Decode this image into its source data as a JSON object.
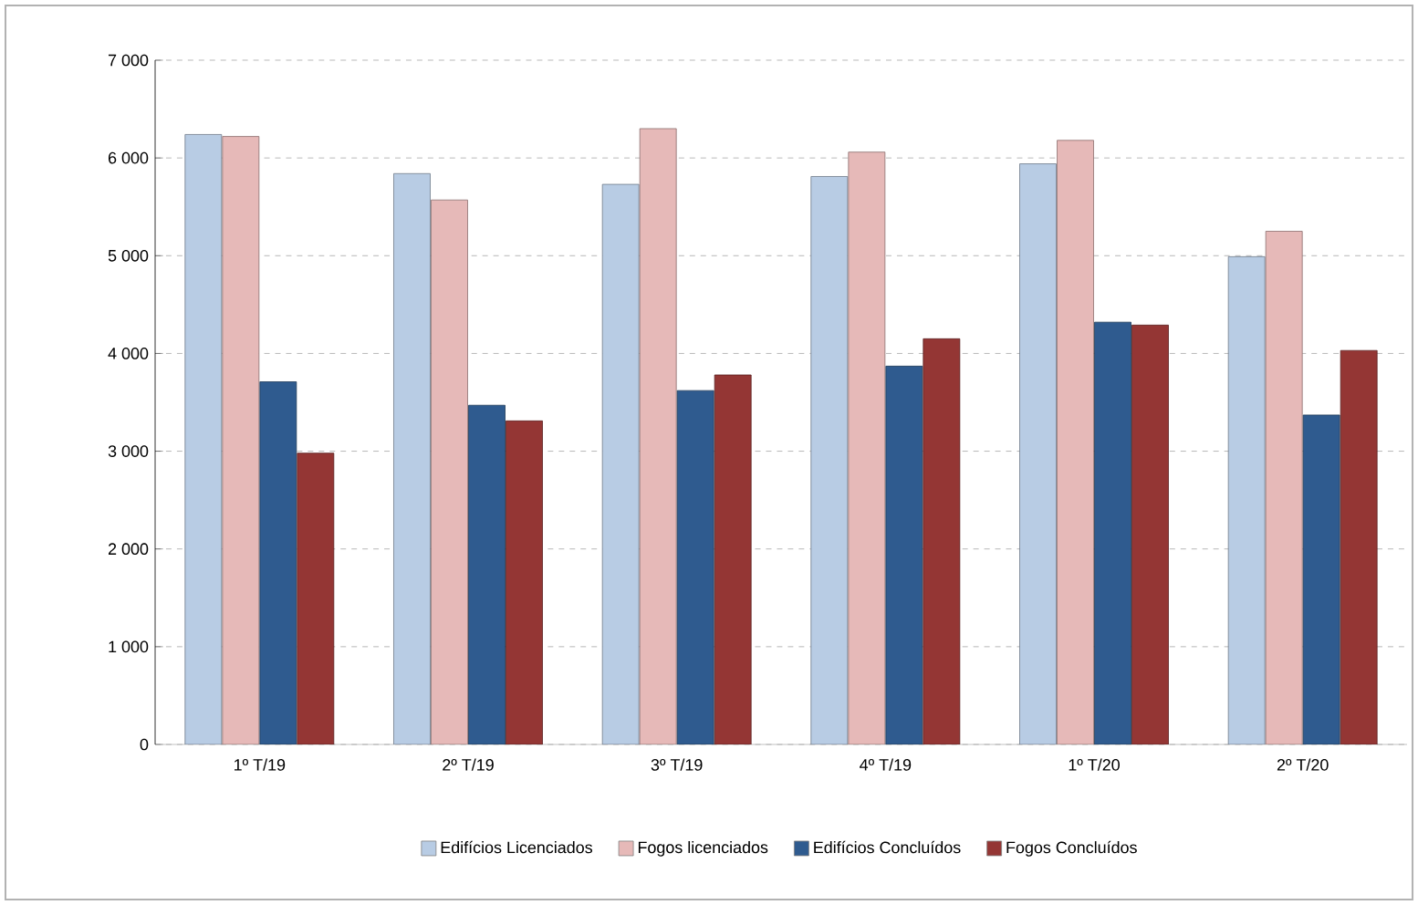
{
  "chart_data": {
    "type": "bar",
    "categories": [
      "1º T/19",
      "2º T/19",
      "3º T/19",
      "4º T/19",
      "1º T/20",
      "2º T/20"
    ],
    "series": [
      {
        "name": "Edifícios Licenciados",
        "color": "#b8cce4",
        "values": [
          6240,
          5840,
          5730,
          5810,
          5940,
          4990
        ]
      },
      {
        "name": "Fogos licenciados",
        "color": "#e6b9b8",
        "values": [
          6220,
          5570,
          6300,
          6060,
          6180,
          5250
        ]
      },
      {
        "name": "Edifícios Concluídos",
        "color": "#2f5b8f",
        "values": [
          3710,
          3470,
          3620,
          3870,
          4320,
          3370
        ]
      },
      {
        "name": "Fogos Concluídos",
        "color": "#943634",
        "values": [
          2980,
          3310,
          3780,
          4150,
          4290,
          4030
        ]
      }
    ],
    "ylim": [
      0,
      7000
    ],
    "yticks": [
      {
        "value": 0,
        "label": "0"
      },
      {
        "value": 1000,
        "label": "1 000"
      },
      {
        "value": 2000,
        "label": "2 000"
      },
      {
        "value": 3000,
        "label": "3 000"
      },
      {
        "value": 4000,
        "label": "4 000"
      },
      {
        "value": 5000,
        "label": "5 000"
      },
      {
        "value": 6000,
        "label": "6 000"
      },
      {
        "value": 7000,
        "label": "7 000"
      }
    ],
    "grid": "y",
    "legend": "bottom"
  }
}
